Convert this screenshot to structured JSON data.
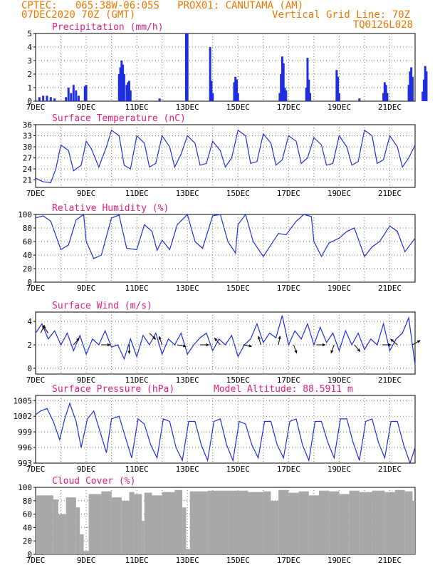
{
  "header": {
    "line1_left": "CPTEC:   065:38W-06:05S   PROX01: CANUTAMA (AM)",
    "line2_left": "07DEC2020 70Z (GMT)",
    "line2_right": "Vertical Grid Line: 70Z",
    "line3_right": "TQ0126L028"
  },
  "colors": {
    "header": "#ee7700",
    "title": "#e0207a",
    "series": "#1f2fdd",
    "cloud": "#a8a8a8",
    "grid": "#777777"
  },
  "chart_data": [
    {
      "type": "bar",
      "title": "Precipitation (mm/h)",
      "ylim": [
        0,
        5
      ],
      "yticks": [
        0,
        1,
        2,
        3,
        4,
        5
      ],
      "x_start": "07DEC",
      "x_end": "22DEC",
      "xticks": [
        "7DEC",
        "9DEC",
        "11DEC",
        "13DEC",
        "15DEC",
        "17DEC",
        "19DEC",
        "21DEC"
      ],
      "xtick_days": [
        0,
        2,
        4,
        6,
        8,
        10,
        12,
        14
      ],
      "bars": [
        [
          0.15,
          0.3
        ],
        [
          0.3,
          0.4
        ],
        [
          0.45,
          0.4
        ],
        [
          0.6,
          0.3
        ],
        [
          0.75,
          0.2
        ],
        [
          1.2,
          0.3
        ],
        [
          1.3,
          1.0
        ],
        [
          1.4,
          0.6
        ],
        [
          1.5,
          1.2
        ],
        [
          1.6,
          0.8
        ],
        [
          1.7,
          0.4
        ],
        [
          1.95,
          1.1
        ],
        [
          2.0,
          1.2
        ],
        [
          3.3,
          2.0
        ],
        [
          3.35,
          2.5
        ],
        [
          3.4,
          3.0
        ],
        [
          3.45,
          2.7
        ],
        [
          3.5,
          2.0
        ],
        [
          3.6,
          1.2
        ],
        [
          3.65,
          1.4
        ],
        [
          3.7,
          1.5
        ],
        [
          3.75,
          0.8
        ],
        [
          4.9,
          0.2
        ],
        [
          5.95,
          5.0
        ],
        [
          6.0,
          5.0
        ],
        [
          6.9,
          4.0
        ],
        [
          6.95,
          1.5
        ],
        [
          7.0,
          0.6
        ],
        [
          7.85,
          1.4
        ],
        [
          7.9,
          1.8
        ],
        [
          7.95,
          1.6
        ],
        [
          8.0,
          0.6
        ],
        [
          9.65,
          0.6
        ],
        [
          9.7,
          2.0
        ],
        [
          9.75,
          3.3
        ],
        [
          9.8,
          2.8
        ],
        [
          9.85,
          1.0
        ],
        [
          9.9,
          0.8
        ],
        [
          10.7,
          1.0
        ],
        [
          10.75,
          3.2
        ],
        [
          10.8,
          1.6
        ],
        [
          10.85,
          0.6
        ],
        [
          11.9,
          2.3
        ],
        [
          11.95,
          1.8
        ],
        [
          12.0,
          0.6
        ],
        [
          12.8,
          0.2
        ],
        [
          13.75,
          0.6
        ],
        [
          13.8,
          1.4
        ],
        [
          13.85,
          1.2
        ],
        [
          13.9,
          0.6
        ],
        [
          14.75,
          1.2
        ],
        [
          14.8,
          2.2
        ],
        [
          14.85,
          2.5
        ],
        [
          14.9,
          1.8
        ],
        [
          15.3,
          0.7
        ],
        [
          15.35,
          1.6
        ],
        [
          15.4,
          2.6
        ],
        [
          15.45,
          2.2
        ]
      ]
    },
    {
      "type": "line",
      "title": "Surface Temperature (nC)",
      "ylim": [
        19,
        36
      ],
      "yticks": [
        21,
        24,
        27,
        30,
        33,
        36
      ],
      "series": [
        {
          "x": [
            0,
            0.3,
            0.6,
            0.8,
            1.0,
            1.3,
            1.5,
            1.8,
            2.0,
            2.2,
            2.5,
            2.8,
            3.0,
            3.3,
            3.5,
            3.75,
            4.0,
            4.3,
            4.5,
            4.75,
            5.0,
            5.3,
            5.5,
            5.75,
            6.0,
            6.3,
            6.5,
            6.75,
            7.0,
            7.3,
            7.5,
            7.75,
            8.0,
            8.3,
            8.5,
            8.75,
            9.0,
            9.3,
            9.5,
            9.75,
            10.0,
            10.3,
            10.5,
            10.75,
            11.0,
            11.3,
            11.5,
            11.75,
            12.0,
            12.3,
            12.5,
            12.75,
            13.0,
            13.3,
            13.5,
            13.75,
            14.0,
            14.3,
            14.5,
            14.75,
            15.0
          ],
          "y": [
            21.5,
            20.5,
            20.3,
            24.0,
            30.5,
            29.0,
            23.5,
            25.0,
            31.5,
            29.5,
            24.5,
            30.0,
            34.5,
            33.0,
            25.0,
            24.0,
            33.0,
            31.0,
            24.5,
            25.5,
            33.0,
            30.0,
            24.5,
            28.0,
            33.0,
            31.0,
            25.0,
            25.5,
            31.5,
            29.0,
            24.5,
            27.0,
            34.5,
            33.0,
            25.5,
            26.0,
            33.5,
            31.0,
            25.0,
            26.5,
            33.0,
            31.5,
            25.5,
            27.0,
            32.5,
            30.5,
            25.0,
            25.5,
            33.0,
            30.0,
            25.0,
            26.0,
            34.5,
            33.0,
            25.5,
            26.5,
            33.0,
            30.0,
            24.5,
            27.0,
            30.5
          ]
        }
      ]
    },
    {
      "type": "line",
      "title": "Relative Humidity (%)",
      "ylim": [
        0,
        100
      ],
      "yticks": [
        0,
        20,
        40,
        60,
        80,
        100
      ],
      "series": [
        {
          "x": [
            0,
            0.3,
            0.6,
            1.0,
            1.3,
            1.6,
            1.9,
            2.0,
            2.3,
            2.6,
            3.0,
            3.3,
            3.6,
            4.0,
            4.3,
            4.6,
            4.8,
            5.0,
            5.3,
            5.6,
            6.0,
            6.3,
            6.6,
            7.0,
            7.3,
            7.6,
            7.9,
            8.0,
            8.3,
            8.6,
            9.0,
            9.3,
            9.6,
            9.9,
            10.0,
            10.3,
            10.6,
            10.9,
            11.0,
            11.3,
            11.6,
            12.0,
            12.3,
            12.6,
            13.0,
            13.3,
            13.6,
            14.0,
            14.3,
            14.6,
            15.0
          ],
          "y": [
            95,
            98,
            90,
            48,
            55,
            92,
            100,
            60,
            35,
            40,
            95,
            99,
            50,
            48,
            85,
            75,
            47,
            62,
            48,
            85,
            100,
            60,
            50,
            98,
            100,
            60,
            43,
            85,
            100,
            60,
            38,
            55,
            72,
            70,
            75,
            90,
            100,
            97,
            60,
            38,
            58,
            65,
            75,
            80,
            38,
            52,
            60,
            83,
            75,
            45,
            65
          ]
        }
      ]
    },
    {
      "type": "line",
      "title": "Surface Wind (m/s)",
      "ylim": [
        -0.5,
        4.8
      ],
      "yticks": [
        0,
        2,
        4
      ],
      "series": [
        {
          "x": [
            0,
            0.25,
            0.5,
            0.75,
            1.0,
            1.25,
            1.5,
            1.75,
            2.0,
            2.25,
            2.5,
            2.75,
            3.0,
            3.25,
            3.5,
            3.75,
            4.0,
            4.25,
            4.5,
            4.75,
            5.0,
            5.25,
            5.5,
            5.75,
            6.0,
            6.25,
            6.5,
            6.75,
            7.0,
            7.25,
            7.5,
            7.75,
            8.0,
            8.25,
            8.5,
            8.75,
            9.0,
            9.25,
            9.5,
            9.75,
            10.0,
            10.25,
            10.5,
            10.75,
            11.0,
            11.25,
            11.5,
            11.75,
            12.0,
            12.25,
            12.5,
            12.75,
            13.0,
            13.25,
            13.5,
            13.75,
            14.0,
            14.25,
            14.5,
            14.75,
            15.0
          ],
          "y": [
            3.0,
            3.8,
            2.5,
            3.2,
            2.0,
            3.0,
            1.5,
            2.8,
            1.2,
            2.5,
            2.0,
            3.2,
            1.8,
            2.0,
            0.8,
            2.5,
            1.0,
            2.8,
            2.0,
            3.0,
            1.2,
            2.5,
            2.0,
            3.0,
            1.2,
            2.0,
            2.6,
            3.0,
            1.5,
            2.5,
            2.0,
            2.8,
            1.0,
            2.0,
            2.5,
            3.8,
            2.2,
            3.0,
            2.6,
            4.5,
            2.0,
            3.2,
            2.5,
            3.8,
            2.0,
            3.5,
            2.2,
            3.0,
            1.5,
            3.2,
            2.0,
            3.0,
            1.6,
            2.5,
            2.0,
            3.8,
            1.5,
            2.5,
            3.0,
            4.3,
            0.3
          ]
        }
      ],
      "vectors": [
        [
          0.2,
          3,
          25
        ],
        [
          0.5,
          3,
          -35
        ],
        [
          1.5,
          2,
          40
        ],
        [
          2.6,
          2,
          90
        ],
        [
          3.7,
          2,
          180
        ],
        [
          4.5,
          3,
          135
        ],
        [
          5.0,
          2,
          -20
        ],
        [
          5.6,
          2,
          100
        ],
        [
          6.5,
          2,
          90
        ],
        [
          7.3,
          2,
          -40
        ],
        [
          8.2,
          2,
          100
        ],
        [
          8.9,
          2,
          -15
        ],
        [
          9.6,
          2,
          10
        ],
        [
          10.2,
          2,
          160
        ],
        [
          11.1,
          2,
          90
        ],
        [
          11.8,
          2,
          200
        ],
        [
          12.6,
          2,
          140
        ],
        [
          13.7,
          2,
          90
        ],
        [
          14.3,
          2,
          -50
        ],
        [
          14.9,
          2,
          60
        ]
      ]
    },
    {
      "type": "line",
      "title": "Surface Pressure (hPa)",
      "annotation": "Model Altitude: 88.5911 m",
      "ylim": [
        993,
        1006
      ],
      "yticks": [
        993,
        996,
        999,
        1002,
        1005
      ],
      "series": [
        {
          "x": [
            0,
            0.2,
            0.45,
            0.7,
            0.95,
            1.15,
            1.35,
            1.6,
            1.8,
            2.05,
            2.3,
            2.55,
            2.8,
            3.0,
            3.3,
            3.55,
            3.8,
            4.05,
            4.3,
            4.55,
            4.8,
            5.05,
            5.3,
            5.55,
            5.8,
            6.05,
            6.3,
            6.55,
            6.8,
            7.05,
            7.3,
            7.55,
            7.8,
            8.05,
            8.3,
            8.55,
            8.8,
            9.05,
            9.3,
            9.55,
            9.8,
            10.05,
            10.3,
            10.55,
            10.8,
            11.05,
            11.3,
            11.55,
            11.8,
            12.05,
            12.3,
            12.55,
            12.8,
            13.05,
            13.3,
            13.55,
            13.8,
            14.05,
            14.3,
            14.55,
            14.8,
            15.0
          ],
          "y": [
            1002.3,
            1003.0,
            1003.5,
            1001.0,
            997.5,
            1001.5,
            1004.5,
            1001.0,
            996.0,
            1001.5,
            1003.0,
            999.0,
            995.0,
            1001.5,
            1002.0,
            998.0,
            994.0,
            1001.5,
            1000.5,
            996.5,
            994.0,
            1001.5,
            1001.0,
            996.0,
            993.5,
            1001.0,
            1001.0,
            996.5,
            993.5,
            1001.0,
            1001.5,
            996.5,
            993.5,
            1001.0,
            1000.5,
            996.5,
            994.0,
            1001.0,
            1001.0,
            996.5,
            994.0,
            1001.0,
            1001.5,
            996.5,
            993.5,
            1001.0,
            1001.0,
            997.0,
            994.0,
            1001.5,
            1001.5,
            997.0,
            993.5,
            1001.0,
            1001.5,
            997.0,
            994.0,
            1001.0,
            1001.0,
            996.5,
            993.0,
            996.0
          ]
        }
      ]
    },
    {
      "type": "bar",
      "title": "Cloud Cover (%)",
      "ylim": [
        0,
        100
      ],
      "yticks": [
        0,
        20,
        40,
        60,
        80,
        100
      ],
      "bars": [
        [
          0.0,
          88
        ],
        [
          0.7,
          82
        ],
        [
          0.9,
          60
        ],
        [
          1.2,
          85
        ],
        [
          1.6,
          70
        ],
        [
          1.75,
          30
        ],
        [
          1.9,
          5
        ],
        [
          2.1,
          90
        ],
        [
          2.6,
          94
        ],
        [
          3.0,
          85
        ],
        [
          3.4,
          80
        ],
        [
          3.7,
          93
        ],
        [
          3.9,
          90
        ],
        [
          4.2,
          50
        ],
        [
          4.3,
          92
        ],
        [
          4.6,
          88
        ],
        [
          5.0,
          93
        ],
        [
          5.5,
          96
        ],
        [
          5.8,
          70
        ],
        [
          5.95,
          8
        ],
        [
          6.1,
          94
        ],
        [
          6.8,
          95
        ],
        [
          7.6,
          95
        ],
        [
          8.4,
          93
        ],
        [
          9.0,
          94
        ],
        [
          9.3,
          80
        ],
        [
          9.6,
          96
        ],
        [
          10.0,
          92
        ],
        [
          10.4,
          94
        ],
        [
          10.8,
          88
        ],
        [
          11.2,
          95
        ],
        [
          11.6,
          94
        ],
        [
          12.0,
          90
        ],
        [
          12.4,
          95
        ],
        [
          12.8,
          93
        ],
        [
          13.3,
          95
        ],
        [
          13.8,
          93
        ],
        [
          14.2,
          96
        ],
        [
          14.6,
          94
        ],
        [
          14.9,
          80
        ]
      ]
    }
  ]
}
